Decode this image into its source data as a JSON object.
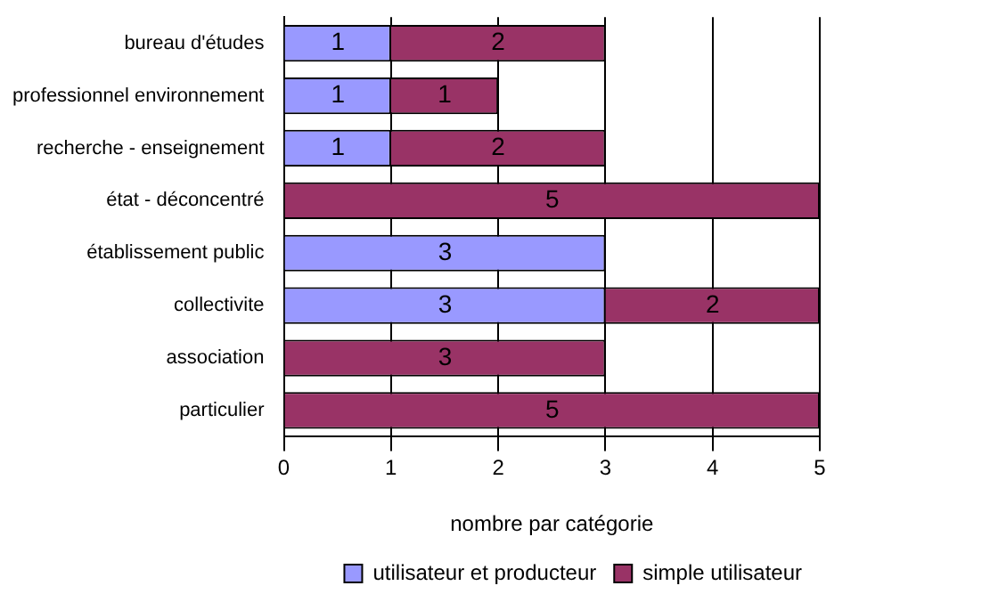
{
  "chart_data": {
    "type": "bar",
    "orientation": "horizontal",
    "stacked": true,
    "xlabel": "nombre par catégorie",
    "categories": [
      "bureau d'études",
      "professionnel environnement",
      "recherche - enseignement",
      "état - déconcentré",
      "établissement public",
      "collectivite",
      "association",
      "particulier"
    ],
    "series": [
      {
        "name": "utilisateur et producteur",
        "color": "#9999ff",
        "values": [
          1,
          1,
          1,
          null,
          3,
          3,
          null,
          null
        ]
      },
      {
        "name": "simple utilisateur",
        "color": "#993366",
        "values": [
          2,
          1,
          2,
          5,
          null,
          2,
          3,
          5
        ]
      }
    ],
    "xlim": [
      0,
      5
    ],
    "xticks": [
      0,
      1,
      2,
      3,
      4,
      5
    ],
    "grid": "x",
    "legend": "bottom right",
    "data_labels": true
  }
}
